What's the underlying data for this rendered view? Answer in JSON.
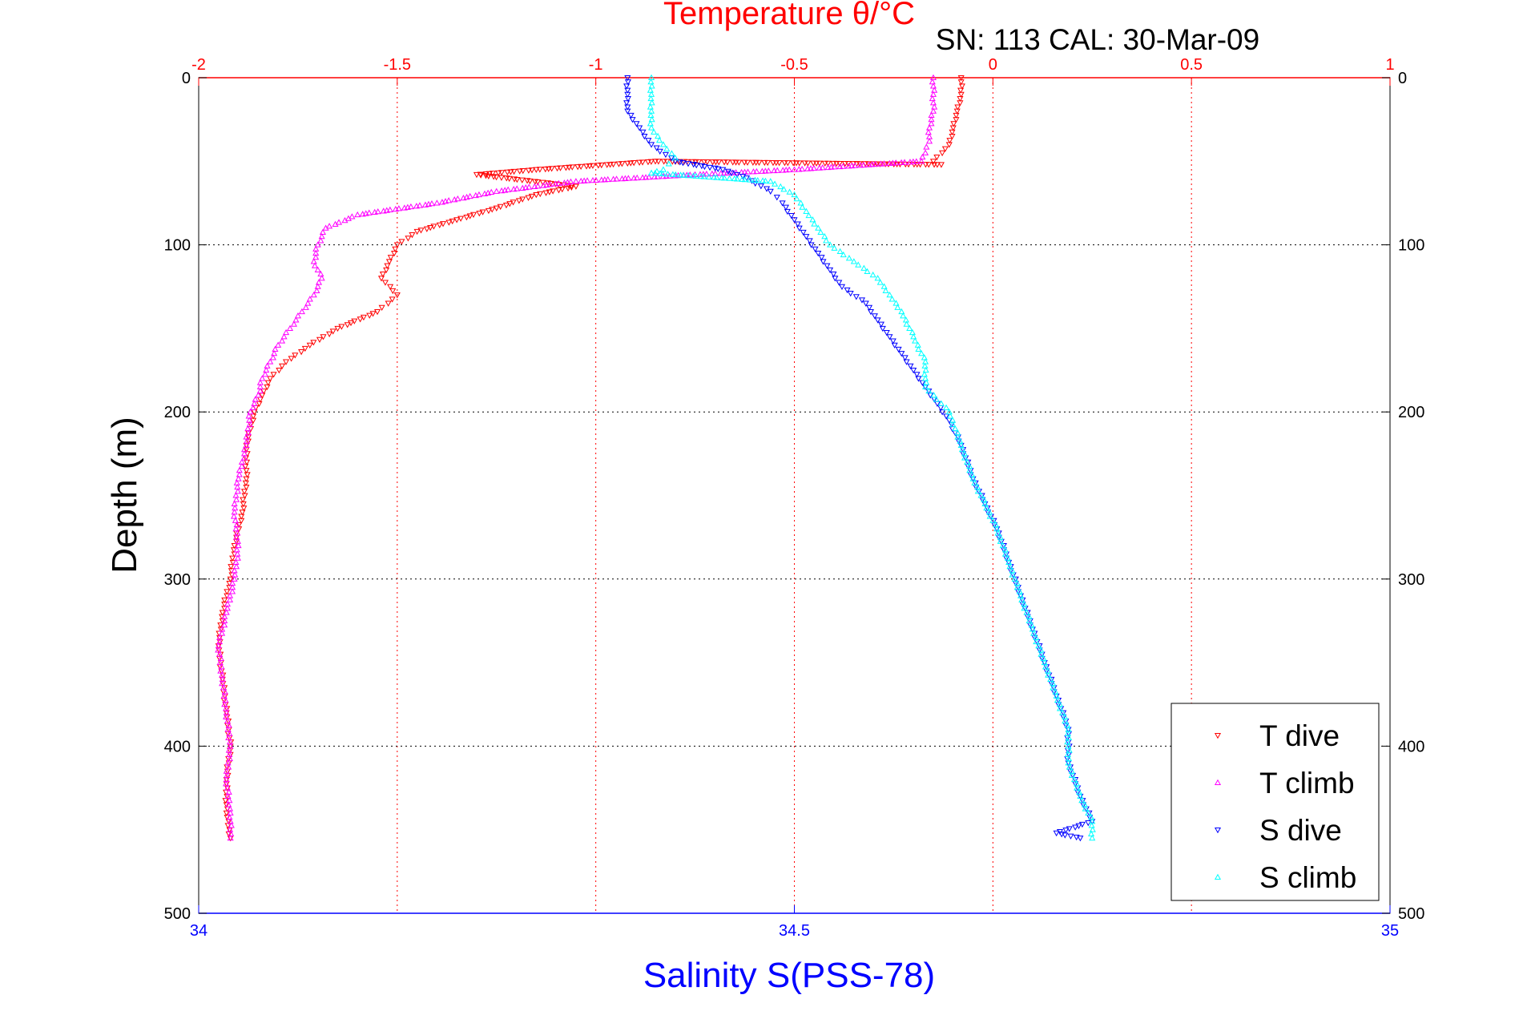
{
  "chart_data": {
    "type": "scatter",
    "title": "Temperature θ/°C",
    "subtitle": "SN: 113  CAL: 30-Mar-09",
    "ylabel": "Depth (m)",
    "xlabel_bottom": "Salinity S(PSS-78)",
    "xlabel_top": "Temperature θ/°C",
    "ylim": [
      0,
      500
    ],
    "y_reversed": true,
    "xlim_top": [
      -2,
      1
    ],
    "xlim_bottom": [
      34,
      35
    ],
    "top_ticks": [
      "-2",
      "-1.5",
      "-1",
      "-0.5",
      "0",
      "0.5",
      "1"
    ],
    "top_tick_values": [
      -2,
      -1.5,
      -1,
      -0.5,
      0,
      0.5,
      1
    ],
    "bottom_ticks": [
      "34",
      "34.5",
      "35"
    ],
    "bottom_tick_values": [
      34,
      34.5,
      35
    ],
    "y_ticks": [
      "0",
      "100",
      "200",
      "300",
      "400",
      "500"
    ],
    "y_tick_values": [
      0,
      100,
      200,
      300,
      400,
      500
    ],
    "grid": true,
    "legend_position": "bottom-right",
    "colors": {
      "t_dive": "#ff0000",
      "t_climb": "#ff00ff",
      "s_dive": "#0000ff",
      "s_climb": "#00ffff",
      "top_axis": "#ff0000",
      "bottom_axis": "#0000ff"
    },
    "series": [
      {
        "name": "T dive",
        "axis": "top",
        "marker": "down-triangle",
        "color": "#ff0000",
        "points": [
          [
            -0.08,
            0
          ],
          [
            -0.08,
            10
          ],
          [
            -0.09,
            20
          ],
          [
            -0.1,
            30
          ],
          [
            -0.11,
            40
          ],
          [
            -0.15,
            50
          ],
          [
            -0.13,
            52
          ],
          [
            -0.85,
            50
          ],
          [
            -1.15,
            55
          ],
          [
            -1.3,
            58
          ],
          [
            -1.05,
            65
          ],
          [
            -1.15,
            70
          ],
          [
            -1.25,
            78
          ],
          [
            -1.35,
            85
          ],
          [
            -1.45,
            92
          ],
          [
            -1.5,
            100
          ],
          [
            -1.52,
            110
          ],
          [
            -1.54,
            120
          ],
          [
            -1.5,
            130
          ],
          [
            -1.55,
            140
          ],
          [
            -1.65,
            150
          ],
          [
            -1.72,
            160
          ],
          [
            -1.78,
            170
          ],
          [
            -1.82,
            180
          ],
          [
            -1.84,
            190
          ],
          [
            -1.86,
            200
          ],
          [
            -1.88,
            220
          ],
          [
            -1.88,
            240
          ],
          [
            -1.89,
            260
          ],
          [
            -1.91,
            280
          ],
          [
            -1.92,
            300
          ],
          [
            -1.94,
            320
          ],
          [
            -1.95,
            340
          ],
          [
            -1.94,
            360
          ],
          [
            -1.93,
            380
          ],
          [
            -1.92,
            400
          ],
          [
            -1.93,
            420
          ],
          [
            -1.93,
            440
          ],
          [
            -1.92,
            455
          ]
        ]
      },
      {
        "name": "T climb",
        "axis": "top",
        "marker": "up-triangle",
        "color": "#ff00ff",
        "points": [
          [
            -0.15,
            0
          ],
          [
            -0.15,
            10
          ],
          [
            -0.15,
            20
          ],
          [
            -0.16,
            30
          ],
          [
            -0.16,
            38
          ],
          [
            -0.17,
            45
          ],
          [
            -0.18,
            50
          ],
          [
            -0.5,
            55
          ],
          [
            -0.75,
            58
          ],
          [
            -1.05,
            62
          ],
          [
            -1.25,
            68
          ],
          [
            -1.4,
            75
          ],
          [
            -1.6,
            82
          ],
          [
            -1.68,
            90
          ],
          [
            -1.7,
            100
          ],
          [
            -1.71,
            110
          ],
          [
            -1.69,
            120
          ],
          [
            -1.71,
            130
          ],
          [
            -1.74,
            140
          ],
          [
            -1.77,
            150
          ],
          [
            -1.8,
            160
          ],
          [
            -1.82,
            170
          ],
          [
            -1.84,
            180
          ],
          [
            -1.85,
            190
          ],
          [
            -1.87,
            200
          ],
          [
            -1.88,
            220
          ],
          [
            -1.9,
            240
          ],
          [
            -1.91,
            260
          ],
          [
            -1.9,
            280
          ],
          [
            -1.91,
            300
          ],
          [
            -1.93,
            320
          ],
          [
            -1.95,
            340
          ],
          [
            -1.94,
            360
          ],
          [
            -1.93,
            380
          ],
          [
            -1.92,
            400
          ],
          [
            -1.93,
            420
          ],
          [
            -1.92,
            440
          ],
          [
            -1.92,
            455
          ]
        ]
      },
      {
        "name": "S dive",
        "axis": "bottom",
        "marker": "down-triangle",
        "color": "#0000ff",
        "points": [
          [
            34.36,
            0
          ],
          [
            34.36,
            10
          ],
          [
            34.36,
            20
          ],
          [
            34.37,
            30
          ],
          [
            34.38,
            40
          ],
          [
            34.4,
            50
          ],
          [
            34.44,
            55
          ],
          [
            34.46,
            60
          ],
          [
            34.48,
            68
          ],
          [
            34.49,
            75
          ],
          [
            34.5,
            85
          ],
          [
            34.51,
            95
          ],
          [
            34.52,
            105
          ],
          [
            34.53,
            115
          ],
          [
            34.54,
            125
          ],
          [
            34.56,
            135
          ],
          [
            34.57,
            145
          ],
          [
            34.58,
            155
          ],
          [
            34.59,
            165
          ],
          [
            34.6,
            175
          ],
          [
            34.61,
            185
          ],
          [
            34.62,
            195
          ],
          [
            34.63,
            205
          ],
          [
            34.64,
            220
          ],
          [
            34.65,
            240
          ],
          [
            34.66,
            255
          ],
          [
            34.67,
            270
          ],
          [
            34.68,
            290
          ],
          [
            34.69,
            310
          ],
          [
            34.7,
            330
          ],
          [
            34.71,
            350
          ],
          [
            34.72,
            370
          ],
          [
            34.73,
            390
          ],
          [
            34.73,
            410
          ],
          [
            34.74,
            430
          ],
          [
            34.75,
            445
          ],
          [
            34.72,
            452
          ],
          [
            34.74,
            455
          ]
        ]
      },
      {
        "name": "S climb",
        "axis": "bottom",
        "marker": "up-triangle",
        "color": "#00ffff",
        "points": [
          [
            34.38,
            0
          ],
          [
            34.38,
            10
          ],
          [
            34.38,
            20
          ],
          [
            34.38,
            30
          ],
          [
            34.39,
            40
          ],
          [
            34.4,
            48
          ],
          [
            34.39,
            55
          ],
          [
            34.38,
            57
          ],
          [
            34.48,
            62
          ],
          [
            34.5,
            70
          ],
          [
            34.51,
            80
          ],
          [
            34.52,
            90
          ],
          [
            34.53,
            100
          ],
          [
            34.55,
            110
          ],
          [
            34.57,
            120
          ],
          [
            34.58,
            130
          ],
          [
            34.59,
            140
          ],
          [
            34.6,
            155
          ],
          [
            34.61,
            170
          ],
          [
            34.61,
            185
          ],
          [
            34.63,
            200
          ],
          [
            34.64,
            220
          ],
          [
            34.65,
            240
          ],
          [
            34.66,
            255
          ],
          [
            34.67,
            270
          ],
          [
            34.68,
            290
          ],
          [
            34.69,
            310
          ],
          [
            34.7,
            330
          ],
          [
            34.71,
            350
          ],
          [
            34.72,
            370
          ],
          [
            34.73,
            390
          ],
          [
            34.73,
            410
          ],
          [
            34.74,
            430
          ],
          [
            34.75,
            445
          ],
          [
            34.75,
            455
          ]
        ]
      }
    ]
  }
}
